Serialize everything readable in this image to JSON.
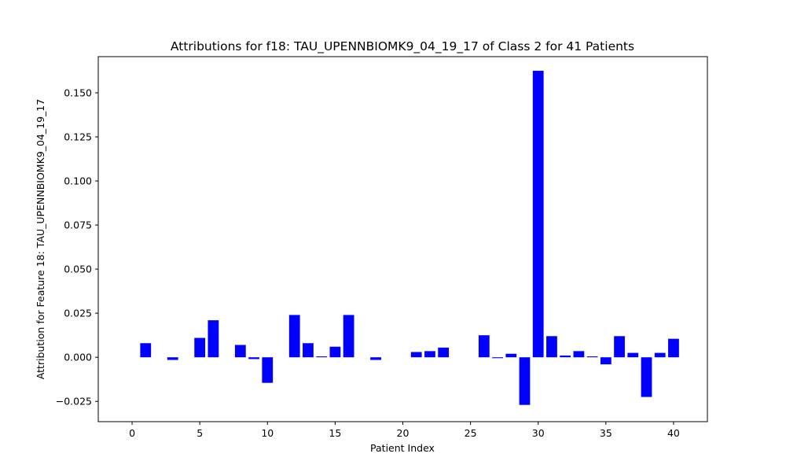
{
  "chart_data": {
    "type": "bar",
    "title": "Attributions for f18: TAU_UPENNBIOMK9_04_19_17 of Class 2 for 41 Patients",
    "xlabel": "Patient Index",
    "ylabel": "Attribution for Feature 18: TAU_UPENNBIOMK9_04_19_17",
    "bar_color": "#0000ff",
    "grid": false,
    "xlim": [
      -2.5,
      42.5
    ],
    "ylim": [
      -0.0365,
      0.1705
    ],
    "x_ticks": [
      0,
      5,
      10,
      15,
      20,
      25,
      30,
      35,
      40
    ],
    "x_tick_labels": [
      "0",
      "5",
      "10",
      "15",
      "20",
      "25",
      "30",
      "35",
      "40"
    ],
    "y_ticks": [
      -0.025,
      0,
      0.025,
      0.05,
      0.075,
      0.1,
      0.125,
      0.15
    ],
    "y_tick_labels": [
      "−0.025",
      "0.000",
      "0.025",
      "0.050",
      "0.075",
      "0.100",
      "0.125",
      "0.150"
    ],
    "x": [
      0,
      1,
      2,
      3,
      4,
      5,
      6,
      7,
      8,
      9,
      10,
      11,
      12,
      13,
      14,
      15,
      16,
      17,
      18,
      19,
      20,
      21,
      22,
      23,
      24,
      25,
      26,
      27,
      28,
      29,
      30,
      31,
      32,
      33,
      34,
      35,
      36,
      37,
      38,
      39,
      40
    ],
    "values": [
      0,
      0.008,
      0,
      -0.0015,
      0,
      0.011,
      0.021,
      0,
      0.007,
      -0.001,
      -0.0145,
      0,
      0.024,
      0.008,
      0.0005,
      0.006,
      0.024,
      0,
      -0.0015,
      0,
      0,
      0.003,
      0.0035,
      0.0055,
      0,
      0,
      0.0125,
      -0.0005,
      0.002,
      -0.027,
      0.1625,
      0.012,
      0.001,
      0.0035,
      0.0005,
      -0.004,
      0.012,
      0.0025,
      -0.0225,
      0.0025,
      0.0105
    ]
  }
}
